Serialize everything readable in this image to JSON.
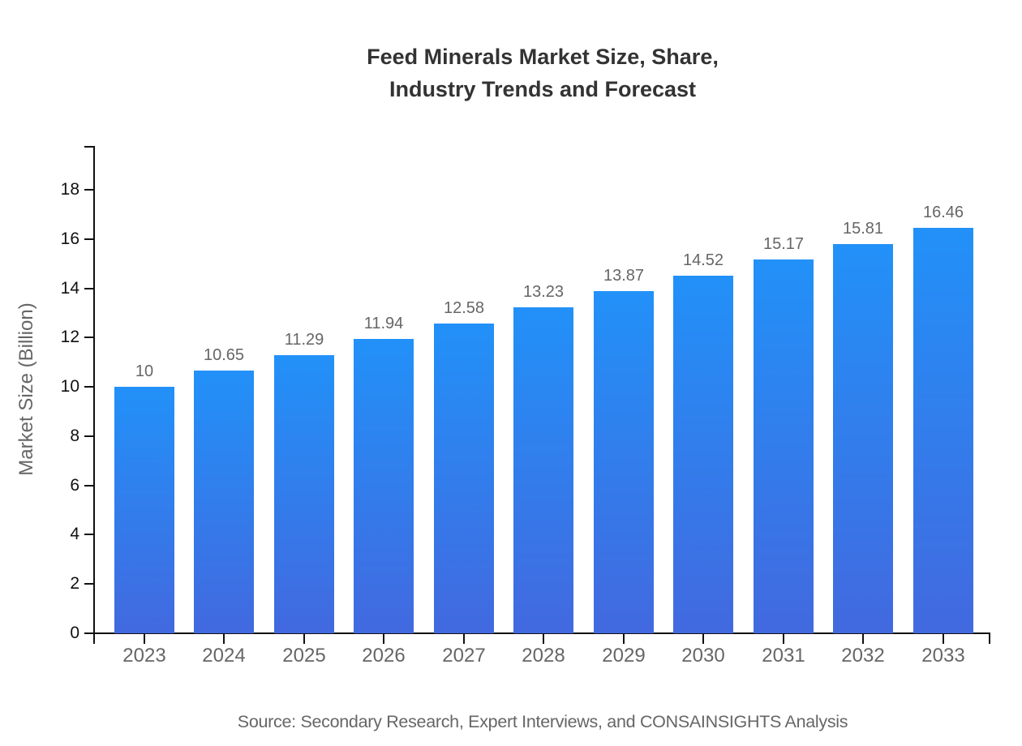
{
  "chart": {
    "title_line1": "Feed Minerals Market Size, Share,",
    "title_line2": "Industry Trends and Forecast",
    "ylabel": "Market Size (Billion)",
    "source": "Source: Secondary Research, Expert Interviews, and CONSAINSIGHTS Analysis"
  },
  "chart_data": {
    "type": "bar",
    "title": "Feed Minerals Market Size, Share, Industry Trends and Forecast",
    "categories": [
      "2023",
      "2024",
      "2025",
      "2026",
      "2027",
      "2028",
      "2029",
      "2030",
      "2031",
      "2032",
      "2033"
    ],
    "values": [
      10,
      10.65,
      11.29,
      11.94,
      12.58,
      13.23,
      13.87,
      14.52,
      15.17,
      15.81,
      16.46
    ],
    "value_labels": [
      "10",
      "10.65",
      "11.29",
      "11.94",
      "12.58",
      "13.23",
      "13.87",
      "14.52",
      "15.17",
      "15.81",
      "16.46"
    ],
    "xlabel": "",
    "ylabel": "Market Size (Billion)",
    "ylim": [
      0,
      19.8
    ],
    "yticks": [
      0,
      2,
      4,
      6,
      8,
      10,
      12,
      14,
      16,
      18
    ],
    "grid": false,
    "legend": "none",
    "bar_color_top": "#2291F8",
    "bar_color_bottom": "#4269DF",
    "axis_color": "#111111",
    "tick_label_color_y": "#111111",
    "tick_label_color_x": "#666666",
    "value_label_color": "#666666",
    "title_color": "#333333",
    "source": "Source: Secondary Research, Expert Interviews, and CONSAINSIGHTS Analysis"
  }
}
